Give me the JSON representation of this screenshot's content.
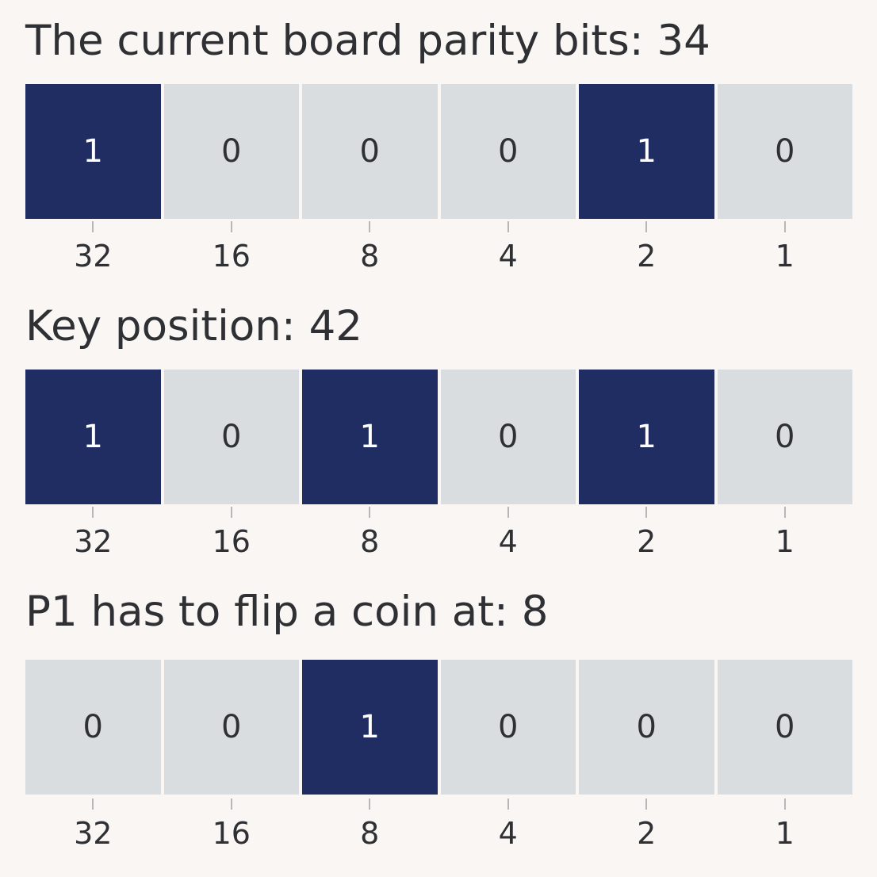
{
  "colors": {
    "background": "#f9f6f3",
    "bit_on": "#1f2d63",
    "bit_off": "#d9dde0",
    "text": "#2e3034",
    "tick": "#b7b7b7"
  },
  "place_values": [
    "32",
    "16",
    "8",
    "4",
    "2",
    "1"
  ],
  "panels": [
    {
      "title": "The current board parity bits: 34",
      "bits": [
        "1",
        "0",
        "0",
        "0",
        "1",
        "0"
      ]
    },
    {
      "title": "Key position: 42",
      "bits": [
        "1",
        "0",
        "1",
        "0",
        "1",
        "0"
      ]
    },
    {
      "title": "P1 has to flip a coin at: 8",
      "bits": [
        "0",
        "0",
        "1",
        "0",
        "0",
        "0"
      ]
    }
  ]
}
